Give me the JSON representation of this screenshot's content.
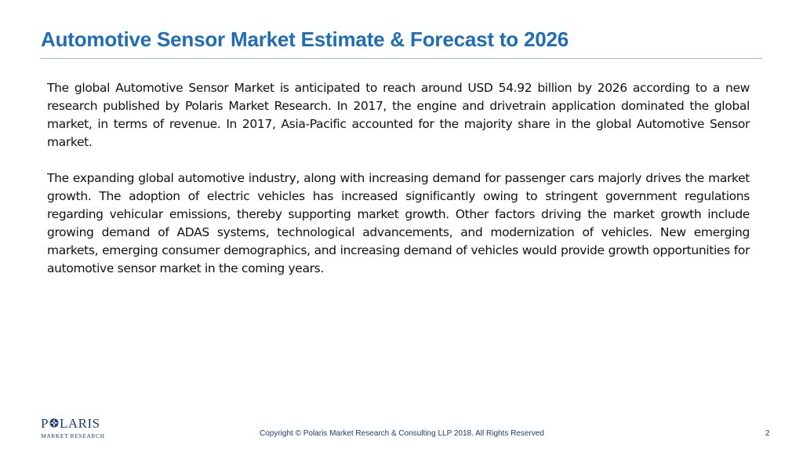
{
  "slide": {
    "title": "Automotive Sensor Market Estimate & Forecast to 2026",
    "paragraphs": [
      "The global Automotive Sensor Market is anticipated to reach around USD 54.92 billion by 2026 according to a new research published by Polaris Market Research. In 2017, the engine and drivetrain application dominated the global market, in terms of revenue. In 2017, Asia-Pacific accounted for the majority share in the global Automotive Sensor market.",
      "The expanding global automotive industry, along with increasing demand for passenger cars majorly drives the market growth. The adoption of electric vehicles has increased significantly owing to stringent government regulations regarding vehicular emissions, thereby supporting market growth. Other factors driving the market growth include growing demand of ADAS systems, technological advancements, and modernization of vehicles. New emerging markets, emerging consumer demographics, and increasing demand of vehicles would provide growth opportunities for automotive sensor market in the coming years."
    ]
  },
  "logo": {
    "text_before_star": "P",
    "text_after_star": "LARIS",
    "subtitle": "MARKET RESEARCH",
    "icon": "compass-star-icon"
  },
  "footer": {
    "copyright": "Copyright © Polaris Market Research & Consulting LLP 2018. All Rights Reserved",
    "page_number": "2"
  },
  "colors": {
    "title": "#1f6eb5",
    "rule": "#9bbad6",
    "brand": "#1f3f72"
  }
}
